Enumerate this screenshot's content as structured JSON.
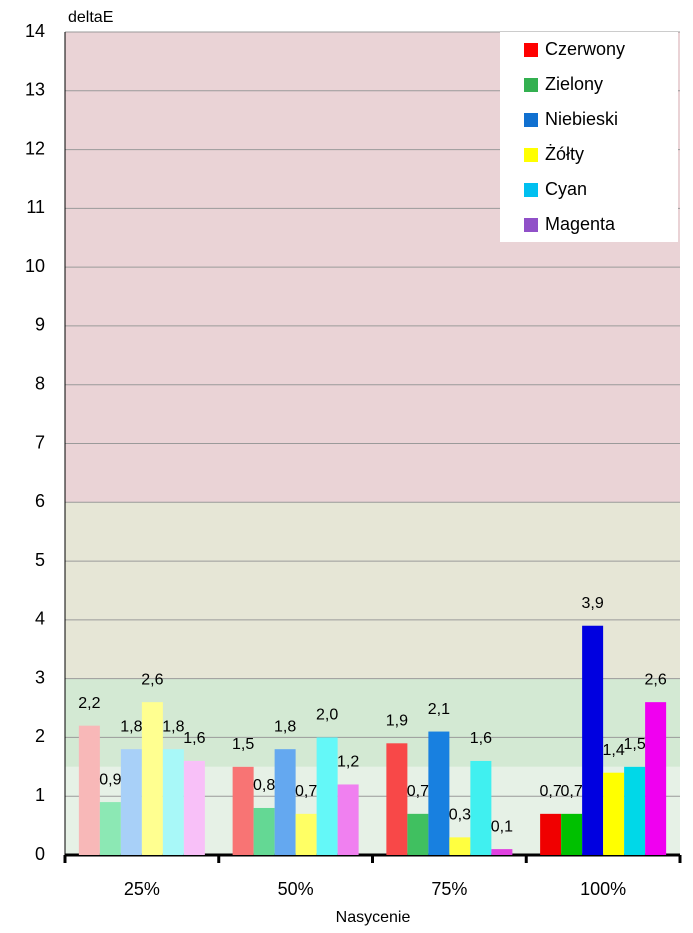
{
  "chart_data": {
    "type": "bar",
    "y_label": "deltaE",
    "x_label": "Nasycenie",
    "categories": [
      "25%",
      "50%",
      "75%",
      "100%"
    ],
    "ylim": [
      0,
      14
    ],
    "yticks": [
      0,
      1,
      2,
      3,
      4,
      5,
      6,
      7,
      8,
      9,
      10,
      11,
      12,
      13,
      14
    ],
    "grid": true,
    "legend": "upper right",
    "zones": [
      {
        "from": 0,
        "to": 1.5,
        "color": "#e6f1e6"
      },
      {
        "from": 1.5,
        "to": 3,
        "color": "#d3e9d3"
      },
      {
        "from": 3,
        "to": 6,
        "color": "#e6e6d6"
      },
      {
        "from": 6,
        "to": 14,
        "color": "#ead3d6"
      }
    ],
    "series": [
      {
        "name": "Czerwony",
        "color": "#ff0000",
        "values": [
          2.2,
          1.5,
          1.9,
          0.7
        ],
        "value_labels": [
          "2,2",
          "1,5",
          "1,9",
          "0,7"
        ],
        "colors": [
          "#f8b8b8",
          "#f87474",
          "#f84848",
          "#f00000"
        ]
      },
      {
        "name": "Zielony",
        "color": "#33b050",
        "values": [
          0.9,
          0.8,
          0.7,
          0.7
        ],
        "value_labels": [
          "0,9",
          "0,8",
          "0,7",
          "0,7"
        ],
        "colors": [
          "#8ce8b4",
          "#64d894",
          "#40c060",
          "#00c000"
        ]
      },
      {
        "name": "Niebieski",
        "color": "#1070d0",
        "values": [
          1.8,
          1.8,
          2.1,
          3.9
        ],
        "value_labels": [
          "1,8",
          "1,8",
          "2,1",
          "3,9"
        ],
        "colors": [
          "#a8d0f8",
          "#64a8f0",
          "#1880e0",
          "#0000e0"
        ]
      },
      {
        "name": "Żółty",
        "color": "#ffff00",
        "values": [
          2.6,
          0.7,
          0.3,
          1.4
        ],
        "value_labels": [
          "2,6",
          "0,7",
          "0,3",
          "1,4"
        ],
        "colors": [
          "#ffff90",
          "#ffff64",
          "#ffff40",
          "#ffff00"
        ]
      },
      {
        "name": "Cyan",
        "color": "#00c0f0",
        "values": [
          1.8,
          2.0,
          1.6,
          1.5
        ],
        "value_labels": [
          "1,8",
          "2,0",
          "1,6",
          "1,5"
        ],
        "colors": [
          "#a8f8f8",
          "#64f8f8",
          "#40f0f0",
          "#00d8e8"
        ]
      },
      {
        "name": "Magenta",
        "color": "#9050c8",
        "values": [
          1.6,
          1.2,
          0.1,
          2.6
        ],
        "value_labels": [
          "1,6",
          "1,2",
          "0,1",
          "2,6"
        ],
        "colors": [
          "#f8c0f8",
          "#f080f0",
          "#e040e0",
          "#f000f0"
        ]
      }
    ]
  }
}
